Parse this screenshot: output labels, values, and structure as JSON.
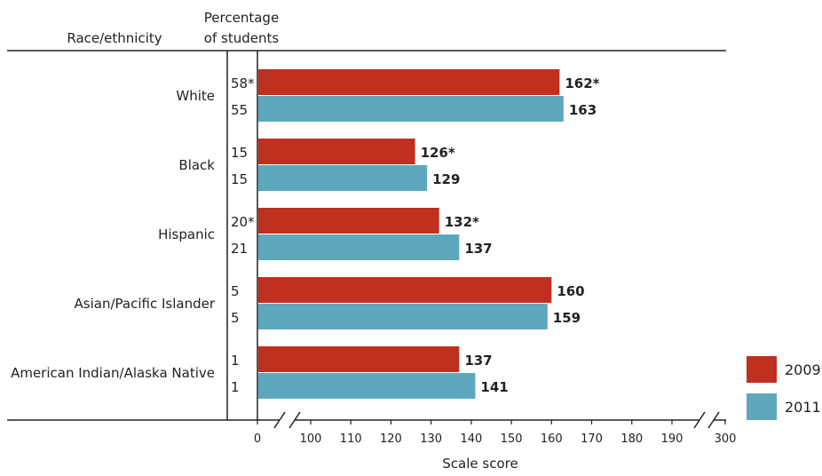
{
  "chart_data": {
    "type": "bar",
    "orientation": "horizontal",
    "headers": {
      "race": "Race/ethnicity",
      "percent_line1": "Percentage",
      "percent_line2": "of students"
    },
    "xlabel": "Scale score",
    "xlim": [
      0,
      300
    ],
    "axis_break": "between 0 and 100, and between 190 and 300",
    "xticks": [
      "0",
      "100",
      "110",
      "120",
      "130",
      "140",
      "150",
      "160",
      "170",
      "180",
      "190",
      "300"
    ],
    "categories": [
      "White",
      "Black",
      "Hispanic",
      "Asian/Pacific Islander",
      "American Indian/Alaska Native"
    ],
    "series": [
      {
        "name": "2009",
        "color": "#c0301f",
        "values": [
          162,
          126,
          132,
          160,
          137
        ],
        "value_labels": [
          "162*",
          "126*",
          "132*",
          "160",
          "137"
        ],
        "percent_labels": [
          "58*",
          "15",
          "20*",
          "5",
          "1"
        ]
      },
      {
        "name": "2011",
        "color": "#5ea8bd",
        "values": [
          163,
          129,
          137,
          159,
          141
        ],
        "value_labels": [
          "163",
          "129",
          "137",
          "159",
          "141"
        ],
        "percent_labels": [
          "55",
          "15",
          "21",
          "5",
          "1"
        ]
      }
    ],
    "legend_position": "bottom-right",
    "grid": false
  }
}
